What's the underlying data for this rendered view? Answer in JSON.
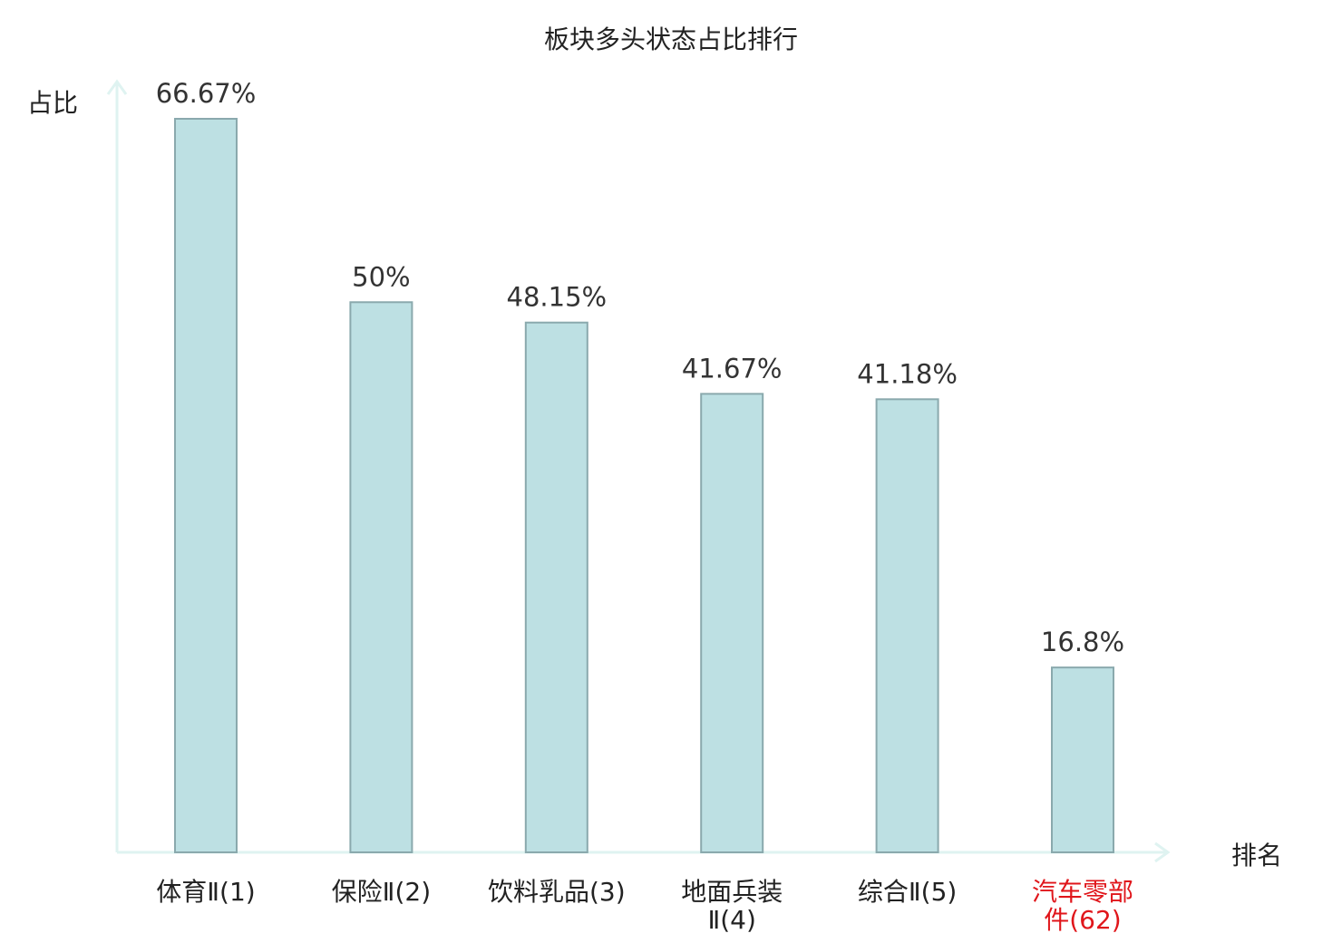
{
  "chart_data": {
    "type": "bar",
    "title": "板块多头状态占比排行",
    "xlabel": "排名",
    "ylabel": "占比",
    "categories": [
      [
        "体育Ⅱ(1)"
      ],
      [
        "保险Ⅱ(2)"
      ],
      [
        "饮料乳品(3)"
      ],
      [
        "地面兵装",
        "Ⅱ(4)"
      ],
      [
        "综合Ⅱ(5)"
      ],
      [
        "汽车零部",
        "件(62)"
      ]
    ],
    "values": [
      66.67,
      50,
      48.15,
      41.67,
      41.18,
      16.8
    ],
    "value_labels": [
      "66.67%",
      "50%",
      "48.15%",
      "41.67%",
      "41.18%",
      "16.8%"
    ],
    "highlight_index": 5,
    "ylim": [
      0,
      70
    ],
    "grid": false,
    "colors": {
      "bar_fill": "#bde0e3",
      "bar_stroke": "#8aa9ad",
      "axis": "#dff3f1",
      "text": "#222222",
      "value_text": "#333333",
      "highlight_text": "#e0161b"
    }
  }
}
